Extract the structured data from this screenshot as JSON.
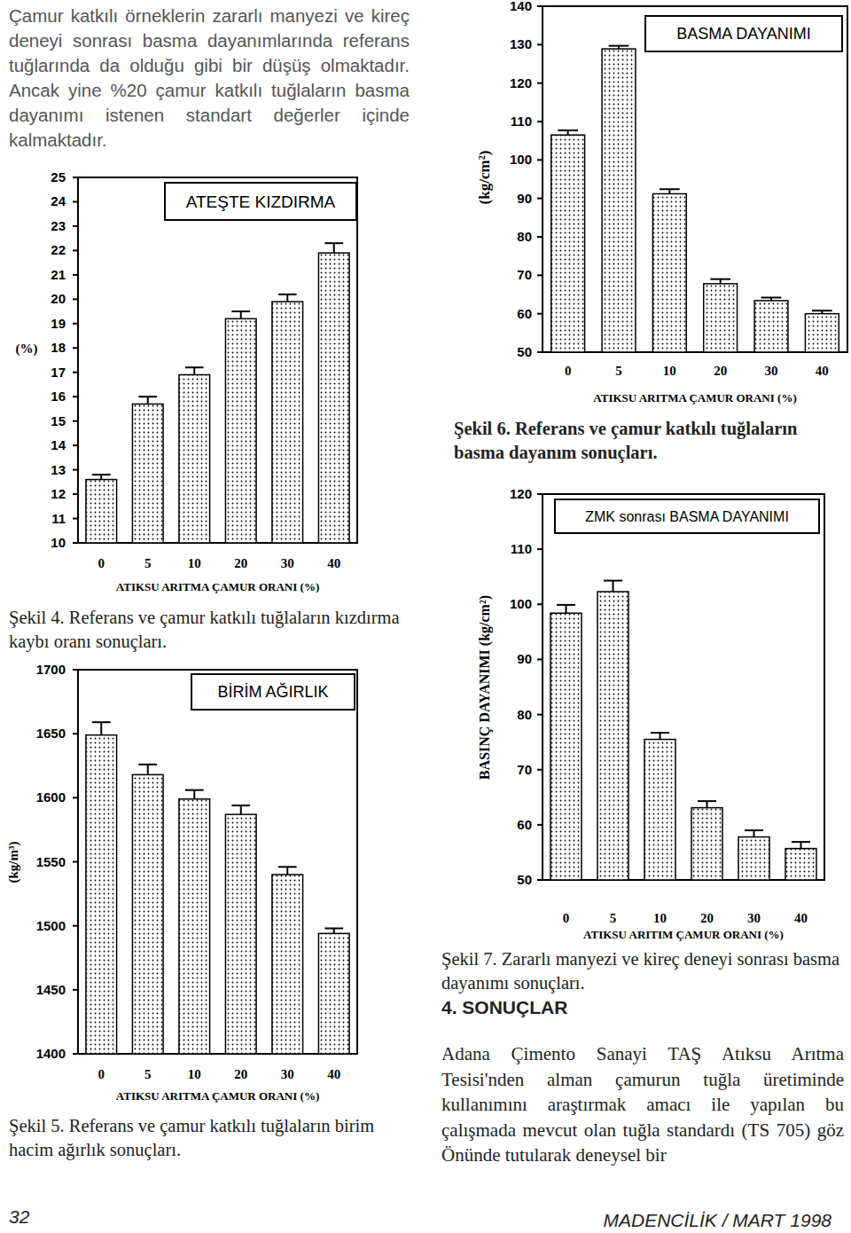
{
  "page": {
    "paragraph_top": "Çamur katkılı örneklerin zararlı manyezi ve kireç deneyi sonrası basma dayanımlarında referans tuğlarında da olduğu gibi bir düşüş olmaktadır. Ancak yine %20 çamur katkılı tuğlaların basma dayanımı istenen standart değerler içinde kalmaktadır.",
    "heading": "4. SONUÇLAR",
    "paragraph_conclusion": "Adana Çimento Sanayi TAŞ Atıksu Arıtma Tesisi'nden alman çamurun tuğla üretiminde kullanımını araştırmak amacı ile yapılan bu çalışmada mevcut olan tuğla standardı (TS 705) göz Önünde tutularak deneysel bir",
    "page_number": "32",
    "footer": "MADENCİLİK / MART 1998"
  },
  "chart_data": [
    {
      "type": "bar",
      "title": "ATEŞTE KIZDIRMA",
      "x_label": "ATIKSU ARITMA ÇAMUR ORANI (%)",
      "y_label": "(%)",
      "caption": "Şekil 4. Referans ve çamur katkılı tuğlaların kızdırma kaybı oranı sonuçları.",
      "categories": [
        "0",
        "5",
        "10",
        "20",
        "30",
        "40"
      ],
      "values": [
        12.6,
        15.7,
        16.9,
        19.2,
        19.9,
        21.9
      ],
      "errors": [
        0.2,
        0.3,
        0.3,
        0.3,
        0.3,
        0.4
      ],
      "color": "#000000",
      "grid": false,
      "ylim": [
        10,
        25
      ],
      "yticks": [
        10,
        11,
        12,
        13,
        14,
        15,
        16,
        17,
        18,
        19,
        20,
        21,
        22,
        23,
        24,
        25
      ]
    },
    {
      "type": "bar",
      "title": "BİRİM AĞIRLIK",
      "x_label": "ATIKSU ARITMA ÇAMUR ORANI (%)",
      "y_label": "(kg/m³)",
      "caption": "Şekil 5. Referans ve çamur katkılı tuğlaların birim hacim ağırlık sonuçları.",
      "categories": [
        "0",
        "5",
        "10",
        "20",
        "30",
        "40"
      ],
      "values": [
        1649,
        1618,
        1599,
        1587,
        1540,
        1494
      ],
      "errors": [
        10,
        8,
        7,
        7,
        6,
        4
      ],
      "color": "#000000",
      "grid": false,
      "ylim": [
        1400,
        1700
      ],
      "yticks": [
        1400,
        1450,
        1500,
        1550,
        1600,
        1650,
        1700
      ]
    },
    {
      "type": "bar",
      "title": "BASMA DAYANIMI",
      "x_label": "ATIKSU ARITMA ÇAMUR ORANI (%)",
      "y_label": "(kg/cm²)",
      "caption": "Şekil 6. Referans ve çamur katkılı tuğlaların basma dayanım sonuçları.",
      "categories": [
        "0",
        "5",
        "10",
        "20",
        "30",
        "40"
      ],
      "values": [
        106.5,
        128.9,
        91.2,
        67.8,
        63.4,
        60
      ],
      "errors": [
        1.2,
        0.8,
        1.2,
        1.2,
        0.8,
        0.8
      ],
      "color": "#000000",
      "grid": false,
      "ylim": [
        50,
        140
      ],
      "yticks": [
        50,
        60,
        70,
        80,
        90,
        100,
        110,
        120,
        130,
        140
      ]
    },
    {
      "type": "bar",
      "title": "ZMK sonrası BASMA DAYANIMI",
      "x_label": "ATIKSU ARITIM ÇAMUR ORANI (%)",
      "y_label": "BASINÇ DAYANIMI (kg/cm²)",
      "caption": "Şekil 7. Zararlı manyezi ve kireç deneyi sonrası basma dayanımı sonuçları.",
      "categories": [
        "0",
        "5",
        "10",
        "20",
        "30",
        "40"
      ],
      "values": [
        98.4,
        102.3,
        75.5,
        63.1,
        57.8,
        55.7
      ],
      "errors": [
        1.5,
        2,
        1.2,
        1.2,
        1.2,
        1.2
      ],
      "color": "#000000",
      "grid": false,
      "ylim": [
        50,
        120
      ],
      "yticks": [
        50,
        60,
        70,
        80,
        90,
        100,
        110,
        120
      ]
    }
  ]
}
